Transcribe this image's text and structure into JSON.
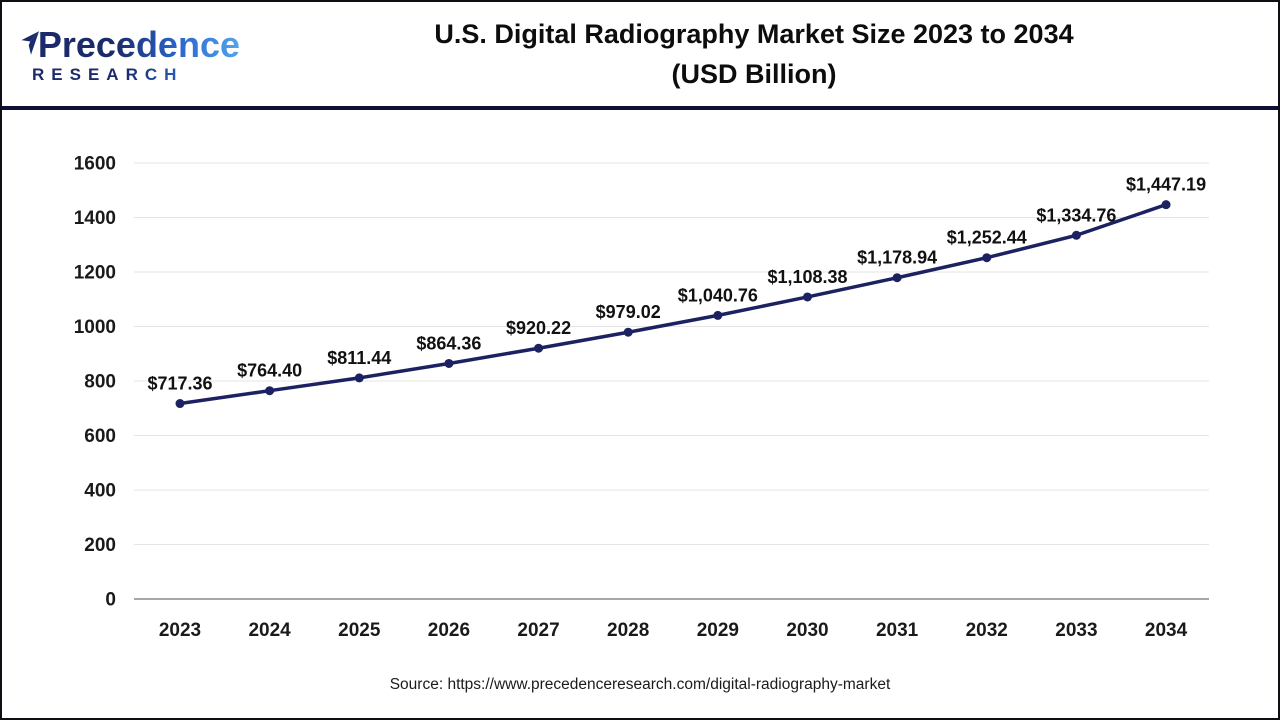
{
  "header": {
    "logo": {
      "brand_line1": "Precedence",
      "brand_line2": "RESEARCH",
      "icon": "paper-plane-icon",
      "color_dark": "#1b2a6b",
      "color_light": "#53a4ec"
    },
    "title_line1": "U.S. Digital Radiography Market Size 2023 to 2034",
    "title_line2": "(USD Billion)"
  },
  "chart_data": {
    "type": "line",
    "title": "U.S. Digital Radiography Market Size 2023 to 2034 (USD Billion)",
    "categories": [
      "2023",
      "2024",
      "2025",
      "2026",
      "2027",
      "2028",
      "2029",
      "2030",
      "2031",
      "2032",
      "2033",
      "2034"
    ],
    "values": [
      717.36,
      764.4,
      811.44,
      864.36,
      920.22,
      979.02,
      1040.76,
      1108.38,
      1178.94,
      1252.44,
      1334.76,
      1447.19
    ],
    "point_labels": [
      "$717.36",
      "$764.40",
      "$811.44",
      "$864.36",
      "$920.22",
      "$979.02",
      "$1,040.76",
      "$1,108.38",
      "$1,178.94",
      "$1,252.44",
      "$1,334.76",
      "$1,447.19"
    ],
    "xlabel": "",
    "ylabel": "",
    "ylim": [
      0,
      1600
    ],
    "yticks": [
      0,
      200,
      400,
      600,
      800,
      1000,
      1200,
      1400,
      1600
    ],
    "grid": "horizontal",
    "legend": "none",
    "line_color": "#1c2161",
    "marker": "circle",
    "grid_color": "#e4e4e4",
    "axis_color": "#a6a6a6",
    "tick_label_color": "#1a1a1a",
    "data_label_color": "#111111"
  },
  "footer": {
    "source_text": "Source: https://www.precedenceresearch.com/digital-radiography-market"
  }
}
